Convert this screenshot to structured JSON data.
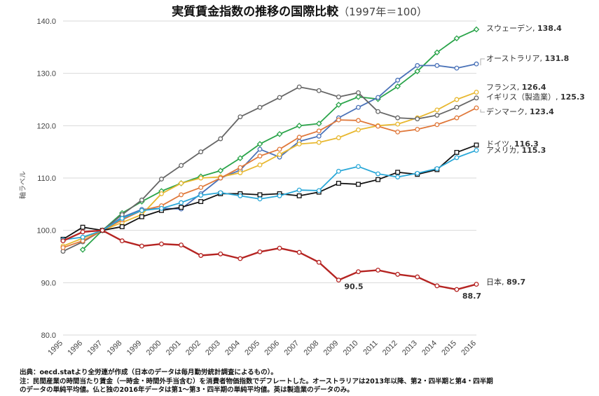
{
  "title": "実質賃金指数の推移の国際比較",
  "subtitle": "（1997年＝100）",
  "chart_data": {
    "type": "line",
    "title": "実質賃金指数の推移の国際比較",
    "subtitle": "（1997年＝100）",
    "ylabel": "軸ラベル",
    "xlabel": "",
    "ylim": [
      80,
      140
    ],
    "yticks": [
      "80.0",
      "90.0",
      "100.0",
      "110.0",
      "120.0",
      "130.0",
      "140.0"
    ],
    "grid": true,
    "x": [
      1995,
      1996,
      1997,
      1998,
      1999,
      2000,
      2001,
      2002,
      2003,
      2004,
      2005,
      2006,
      2007,
      2008,
      2009,
      2010,
      2011,
      2012,
      2013,
      2014,
      2015,
      2016
    ],
    "series": [
      {
        "name": "スウェーデン",
        "end_value": "138.4",
        "color": "#2aa44a",
        "marker": "diamond",
        "values": [
          null,
          96.3,
          100,
          103.3,
          105.5,
          107.5,
          109.0,
          110.3,
          111.4,
          113.8,
          116.5,
          118.4,
          120.0,
          120.4,
          124.0,
          125.5,
          125.1,
          127.5,
          130.4,
          134.0,
          136.7,
          138.4
        ]
      },
      {
        "name": "オーストラリア",
        "end_value": "131.8",
        "color": "#4a72b8",
        "marker": "circle",
        "values": [
          null,
          98.5,
          100,
          102.5,
          104.0,
          104.2,
          104.1,
          107.0,
          110.0,
          111.5,
          115.5,
          114.0,
          117.0,
          118.0,
          121.5,
          123.5,
          125.4,
          128.7,
          131.5,
          131.5,
          131.0,
          131.8
        ]
      },
      {
        "name": "フランス",
        "end_value": "126.4",
        "color": "#e8b830",
        "marker": "circle",
        "values": [
          97.0,
          98.5,
          100,
          101.5,
          103.0,
          107.0,
          109.0,
          110.0,
          110.2,
          111.0,
          112.5,
          114.5,
          116.5,
          116.8,
          117.7,
          119.2,
          120.0,
          120.3,
          121.5,
          123.0,
          125.0,
          126.4
        ]
      },
      {
        "name": "イギリス（製造業）",
        "end_value": "125.3",
        "color": "#666666",
        "marker": "circle",
        "values": [
          96.0,
          97.8,
          100,
          103.0,
          105.8,
          109.8,
          112.4,
          115.0,
          117.5,
          121.7,
          123.5,
          125.4,
          127.4,
          126.7,
          125.5,
          126.3,
          122.7,
          121.5,
          121.3,
          122.0,
          123.5,
          125.3
        ]
      },
      {
        "name": "デンマーク",
        "end_value": "123.4",
        "color": "#e0783a",
        "marker": "circle",
        "values": [
          96.7,
          98.0,
          100,
          102.0,
          103.8,
          104.7,
          106.8,
          108.2,
          110.0,
          112.0,
          114.2,
          115.5,
          117.8,
          119.0,
          121.1,
          121.0,
          119.9,
          118.8,
          119.3,
          120.2,
          121.5,
          123.4
        ]
      },
      {
        "name": "ドイツ",
        "end_value": "116.3",
        "color": "#111111",
        "marker": "square",
        "values": [
          98.3,
          100.6,
          100,
          100.7,
          102.6,
          103.8,
          104.4,
          105.5,
          107.0,
          107.0,
          106.8,
          107.0,
          106.6,
          107.3,
          109.0,
          108.8,
          109.7,
          111.1,
          110.7,
          111.6,
          114.9,
          116.3
        ]
      },
      {
        "name": "アメリカ",
        "end_value": "115.3",
        "color": "#2aa8d8",
        "marker": "circle",
        "values": [
          98.2,
          98.7,
          100,
          102.3,
          103.8,
          104.2,
          105.3,
          106.7,
          107.2,
          106.6,
          106.0,
          106.6,
          107.7,
          107.6,
          111.3,
          112.2,
          110.8,
          110.2,
          110.9,
          111.8,
          113.9,
          115.3
        ]
      },
      {
        "name": "日本",
        "end_value": "89.7",
        "color": "#b52422",
        "marker": "circle",
        "values": [
          98.0,
          99.7,
          100,
          98.0,
          97.0,
          97.4,
          97.2,
          95.2,
          95.5,
          94.6,
          95.9,
          96.6,
          95.8,
          93.9,
          90.5,
          92.1,
          92.4,
          91.6,
          91.1,
          89.4,
          88.7,
          89.7
        ]
      }
    ],
    "annotations": [
      {
        "text": "90.5",
        "x": 2009,
        "y": 90.5
      },
      {
        "text": "88.7",
        "x": 2015,
        "y": 88.7
      }
    ]
  },
  "footnotes": [
    "出典：oecd.statより全労連が作成（日本のデータは毎月勤労統計調査によるもの）。",
    "注：民間産業の時間当たり賃金（一時金・時間外手当含む）を消費者物価指数でデフレートした。オーストラリアは2013年以降、第2・四半期と第4・四半期",
    "のデータの単純平均値。仏と独の2016年データは第1～第3・四半期の単純平均値。英は製造業のデータのみ。"
  ]
}
